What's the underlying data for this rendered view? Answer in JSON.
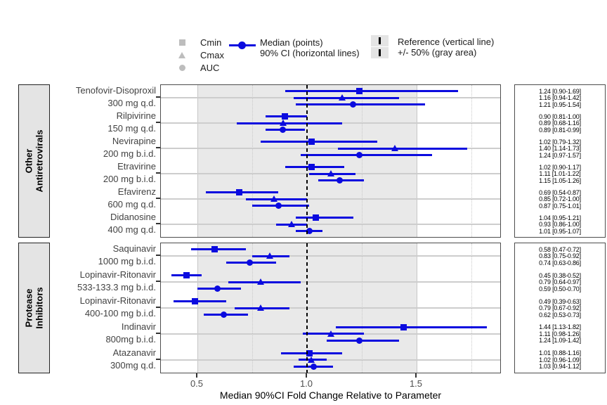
{
  "chart_data": {
    "type": "forest",
    "xlabel": "Median 90%CI Fold Change Relative to Parameter",
    "x_tick_labels": [
      "0.5",
      "1.0",
      "1.5"
    ],
    "x_tick_values": [
      0.5,
      1.0,
      1.5
    ],
    "x_range_approx": [
      0.33,
      1.95
    ],
    "reference_value": 1.0,
    "shaded_band_range": [
      0.5,
      1.5
    ],
    "legend": {
      "shape_items": [
        {
          "shape": "square",
          "label": "Cmin"
        },
        {
          "shape": "triangle",
          "label": "Cmax"
        },
        {
          "shape": "circle",
          "label": "AUC"
        }
      ],
      "median_item": {
        "line1": "Median (points)",
        "line2": "90% CI (horizontal lines)"
      },
      "reference_item": {
        "line1": "Reference (vertical line)",
        "line2": "+/- 50% (gray area)"
      }
    },
    "panels": [
      {
        "category_lines": [
          "Other",
          "Antiretrovirals"
        ],
        "groups": [
          {
            "drug": "Tenofovir-Disoproxil",
            "dose": "300 mg q.d.",
            "rows": [
              {
                "metric": "Cmin",
                "median": 1.24,
                "lo": 0.9,
                "hi": 1.69,
                "label": "1.24 [0.90-1.69]"
              },
              {
                "metric": "Cmax",
                "median": 1.16,
                "lo": 0.94,
                "hi": 1.42,
                "label": "1.16 [0.94-1.42]"
              },
              {
                "metric": "AUC",
                "median": 1.21,
                "lo": 0.95,
                "hi": 1.54,
                "label": "1.21 [0.95-1.54]"
              }
            ]
          },
          {
            "drug": "Rilpivirine",
            "dose": "150 mg q.d.",
            "rows": [
              {
                "metric": "Cmin",
                "median": 0.9,
                "lo": 0.81,
                "hi": 1.0,
                "label": "0.90 [0.81-1.00]"
              },
              {
                "metric": "Cmax",
                "median": 0.89,
                "lo": 0.68,
                "hi": 1.16,
                "label": "0.89 [0.68-1.16]"
              },
              {
                "metric": "AUC",
                "median": 0.89,
                "lo": 0.81,
                "hi": 0.99,
                "label": "0.89 [0.81-0.99]"
              }
            ]
          },
          {
            "drug": "Nevirapine",
            "dose": "200 mg b.i.d.",
            "rows": [
              {
                "metric": "Cmin",
                "median": 1.02,
                "lo": 0.79,
                "hi": 1.32,
                "label": "1.02 [0.79-1.32]"
              },
              {
                "metric": "Cmax",
                "median": 1.4,
                "lo": 1.14,
                "hi": 1.73,
                "label": "1.40 [1.14-1.73]"
              },
              {
                "metric": "AUC",
                "median": 1.24,
                "lo": 0.97,
                "hi": 1.57,
                "label": "1.24 [0.97-1.57]"
              }
            ]
          },
          {
            "drug": "Etravirine",
            "dose": "200 mg b.i.d.",
            "rows": [
              {
                "metric": "Cmin",
                "median": 1.02,
                "lo": 0.9,
                "hi": 1.17,
                "label": "1.02 [0.90-1.17]"
              },
              {
                "metric": "Cmax",
                "median": 1.11,
                "lo": 1.01,
                "hi": 1.22,
                "label": "1.11 [1.01-1.22]"
              },
              {
                "metric": "AUC",
                "median": 1.15,
                "lo": 1.05,
                "hi": 1.26,
                "label": "1.15 [1.05-1.26]"
              }
            ]
          },
          {
            "drug": "Efavirenz",
            "dose": "600 mg q.d.",
            "rows": [
              {
                "metric": "Cmin",
                "median": 0.69,
                "lo": 0.54,
                "hi": 0.87,
                "label": "0.69 [0.54-0.87]"
              },
              {
                "metric": "Cmax",
                "median": 0.85,
                "lo": 0.72,
                "hi": 1.0,
                "label": "0.85 [0.72-1.00]"
              },
              {
                "metric": "AUC",
                "median": 0.87,
                "lo": 0.75,
                "hi": 1.01,
                "label": "0.87 [0.75-1.01]"
              }
            ]
          },
          {
            "drug": "Didanosine",
            "dose": "400 mg q.d.",
            "rows": [
              {
                "metric": "Cmin",
                "median": 1.04,
                "lo": 0.95,
                "hi": 1.21,
                "label": "1.04 [0.95-1.21]"
              },
              {
                "metric": "Cmax",
                "median": 0.93,
                "lo": 0.86,
                "hi": 1.0,
                "label": "0.93 [0.86-1.00]"
              },
              {
                "metric": "AUC",
                "median": 1.01,
                "lo": 0.95,
                "hi": 1.07,
                "label": "1.01 [0.95-1.07]"
              }
            ]
          }
        ]
      },
      {
        "category_lines": [
          "Protease",
          "Inhibitors"
        ],
        "groups": [
          {
            "drug": "Saquinavir",
            "dose": "1000 mg b.i.d.",
            "rows": [
              {
                "metric": "Cmin",
                "median": 0.58,
                "lo": 0.47,
                "hi": 0.72,
                "label": "0.58 [0.47-0.72]"
              },
              {
                "metric": "Cmax",
                "median": 0.83,
                "lo": 0.75,
                "hi": 0.92,
                "label": "0.83 [0.75-0.92]"
              },
              {
                "metric": "AUC",
                "median": 0.74,
                "lo": 0.63,
                "hi": 0.86,
                "label": "0.74 [0.63-0.86]"
              }
            ]
          },
          {
            "drug": "Lopinavir-Ritonavir",
            "dose": "533-133.3 mg b.i.d.",
            "rows": [
              {
                "metric": "Cmin",
                "median": 0.45,
                "lo": 0.38,
                "hi": 0.52,
                "label": "0.45 [0.38-0.52]"
              },
              {
                "metric": "Cmax",
                "median": 0.79,
                "lo": 0.64,
                "hi": 0.97,
                "label": "0.79 [0.64-0.97]"
              },
              {
                "metric": "AUC",
                "median": 0.59,
                "lo": 0.5,
                "hi": 0.7,
                "label": "0.59 [0.50-0.70]"
              }
            ]
          },
          {
            "drug": "Lopinavir-Ritonavir",
            "dose": "400-100 mg b.i.d.",
            "rows": [
              {
                "metric": "Cmin",
                "median": 0.49,
                "lo": 0.39,
                "hi": 0.63,
                "label": "0.49 [0.39-0.63]"
              },
              {
                "metric": "Cmax",
                "median": 0.79,
                "lo": 0.67,
                "hi": 0.92,
                "label": "0.79 [0.67-0.92]"
              },
              {
                "metric": "AUC",
                "median": 0.62,
                "lo": 0.53,
                "hi": 0.73,
                "label": "0.62 [0.53-0.73]"
              }
            ]
          },
          {
            "drug": "Indinavir",
            "dose": "800mg b.i.d.",
            "rows": [
              {
                "metric": "Cmin",
                "median": 1.44,
                "lo": 1.13,
                "hi": 1.82,
                "label": "1.44 [1.13-1.82]"
              },
              {
                "metric": "Cmax",
                "median": 1.11,
                "lo": 0.98,
                "hi": 1.26,
                "label": "1.11 [0.98-1.26]"
              },
              {
                "metric": "AUC",
                "median": 1.24,
                "lo": 1.09,
                "hi": 1.42,
                "label": "1.24 [1.09-1.42]"
              }
            ]
          },
          {
            "drug": "Atazanavir",
            "dose": "300mg q.d.",
            "rows": [
              {
                "metric": "Cmin",
                "median": 1.01,
                "lo": 0.88,
                "hi": 1.16,
                "label": "1.01 [0.88-1.16]"
              },
              {
                "metric": "Cmax",
                "median": 1.02,
                "lo": 0.96,
                "hi": 1.09,
                "label": "1.02 [0.96-1.09]"
              },
              {
                "metric": "AUC",
                "median": 1.03,
                "lo": 0.94,
                "hi": 1.12,
                "label": "1.03 [0.94-1.12]"
              }
            ]
          }
        ]
      }
    ],
    "colors": {
      "series_blue": "#0b0bdf",
      "legend_gray_marker": "#bdbdbd",
      "shaded_band": "#e9e9e9",
      "gridline": "#cdcdcd",
      "reference_line": "#000000",
      "panel_border": "#4d4d4d"
    }
  }
}
